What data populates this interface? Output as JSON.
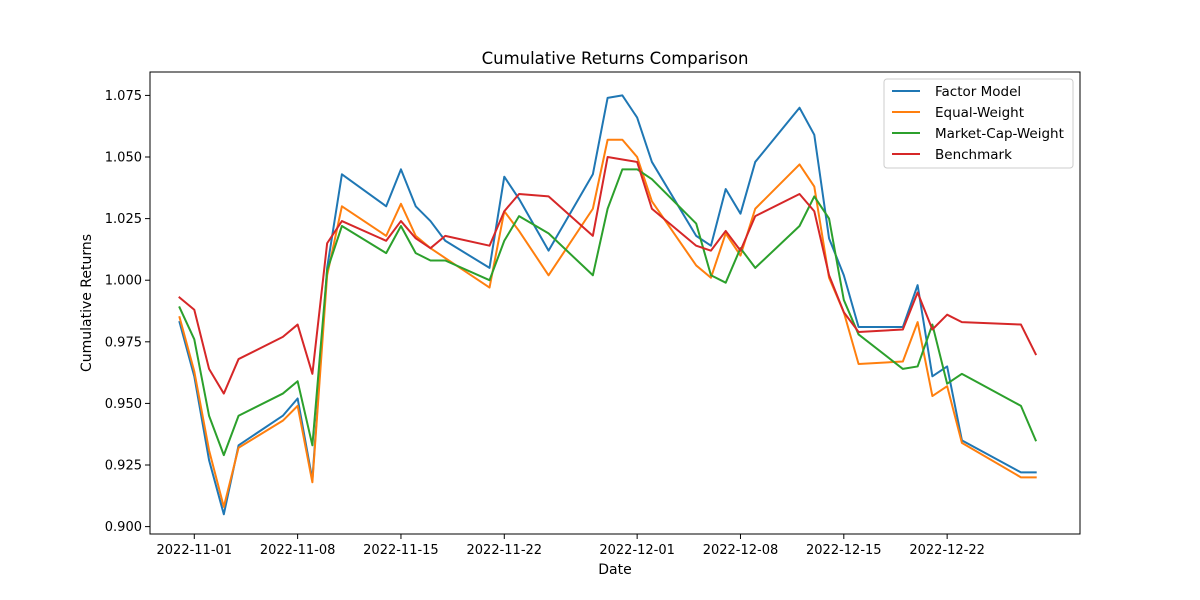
{
  "chart_data": {
    "type": "line",
    "title": "Cumulative Returns Comparison",
    "xlabel": "Date",
    "ylabel": "Cumulative Returns",
    "x_tick_labels": [
      "2022-11-01",
      "2022-11-08",
      "2022-11-15",
      "2022-11-22",
      "2022-12-01",
      "2022-12-08",
      "2022-12-15",
      "2022-12-22"
    ],
    "y_tick_labels": [
      "0.900",
      "0.925",
      "0.950",
      "0.975",
      "1.000",
      "1.025",
      "1.050",
      "1.075"
    ],
    "ylim": [
      0.897,
      1.0845
    ],
    "xlim": [
      "2022-10-29",
      "2022-12-31"
    ],
    "grid": false,
    "legend_position": "top-right",
    "colors": {
      "Factor Model": "#1f77b4",
      "Equal-Weight": "#ff7f0e",
      "Market-Cap-Weight": "#2ca02c",
      "Benchmark": "#d62728"
    },
    "x": [
      "2022-10-31",
      "2022-11-01",
      "2022-11-02",
      "2022-11-03",
      "2022-11-04",
      "2022-11-07",
      "2022-11-08",
      "2022-11-09",
      "2022-11-10",
      "2022-11-11",
      "2022-11-14",
      "2022-11-15",
      "2022-11-16",
      "2022-11-17",
      "2022-11-18",
      "2022-11-21",
      "2022-11-22",
      "2022-11-23",
      "2022-11-25",
      "2022-11-28",
      "2022-11-29",
      "2022-11-30",
      "2022-12-01",
      "2022-12-02",
      "2022-12-05",
      "2022-12-06",
      "2022-12-07",
      "2022-12-08",
      "2022-12-09",
      "2022-12-12",
      "2022-12-13",
      "2022-12-14",
      "2022-12-15",
      "2022-12-16",
      "2022-12-19",
      "2022-12-20",
      "2022-12-21",
      "2022-12-22",
      "2022-12-23",
      "2022-12-27",
      "2022-12-28"
    ],
    "series": [
      {
        "name": "Factor Model",
        "values": [
          0.983,
          0.961,
          0.927,
          0.905,
          0.933,
          0.945,
          0.952,
          0.919,
          1.005,
          1.043,
          1.03,
          1.045,
          1.03,
          1.024,
          1.016,
          1.005,
          1.042,
          1.033,
          1.012,
          1.043,
          1.074,
          1.075,
          1.066,
          1.048,
          1.018,
          1.014,
          1.037,
          1.027,
          1.048,
          1.07,
          1.059,
          1.017,
          1.002,
          0.981,
          0.981,
          0.998,
          0.961,
          0.965,
          0.935,
          0.922,
          0.922
        ]
      },
      {
        "name": "Equal-Weight",
        "values": [
          0.985,
          0.963,
          0.931,
          0.908,
          0.932,
          0.943,
          0.949,
          0.918,
          1.002,
          1.03,
          1.018,
          1.031,
          1.018,
          1.013,
          1.009,
          0.997,
          1.028,
          1.02,
          1.002,
          1.029,
          1.057,
          1.057,
          1.05,
          1.032,
          1.006,
          1.001,
          1.019,
          1.01,
          1.029,
          1.047,
          1.038,
          1.001,
          0.987,
          0.966,
          0.967,
          0.983,
          0.953,
          0.957,
          0.934,
          0.92,
          0.92
        ]
      },
      {
        "name": "Market-Cap-Weight",
        "values": [
          0.989,
          0.976,
          0.945,
          0.929,
          0.945,
          0.954,
          0.959,
          0.933,
          1.004,
          1.022,
          1.011,
          1.022,
          1.011,
          1.008,
          1.008,
          1.0,
          1.016,
          1.026,
          1.019,
          1.002,
          1.029,
          1.045,
          1.045,
          1.041,
          1.023,
          1.002,
          0.999,
          1.013,
          1.005,
          1.022,
          1.034,
          1.025,
          0.992,
          0.978,
          0.964,
          0.965,
          0.982,
          0.958,
          0.962,
          0.949,
          0.935
        ]
      },
      {
        "name": "Benchmark",
        "values": [
          0.993,
          0.988,
          0.964,
          0.954,
          0.968,
          0.977,
          0.982,
          0.962,
          1.015,
          1.024,
          1.016,
          1.024,
          1.017,
          1.013,
          1.018,
          1.014,
          1.028,
          1.035,
          1.034,
          1.018,
          1.05,
          1.049,
          1.048,
          1.029,
          1.014,
          1.012,
          1.02,
          1.012,
          1.026,
          1.035,
          1.028,
          1.002,
          0.987,
          0.979,
          0.98,
          0.995,
          0.98,
          0.986,
          0.983,
          0.982,
          0.97
        ]
      }
    ]
  }
}
